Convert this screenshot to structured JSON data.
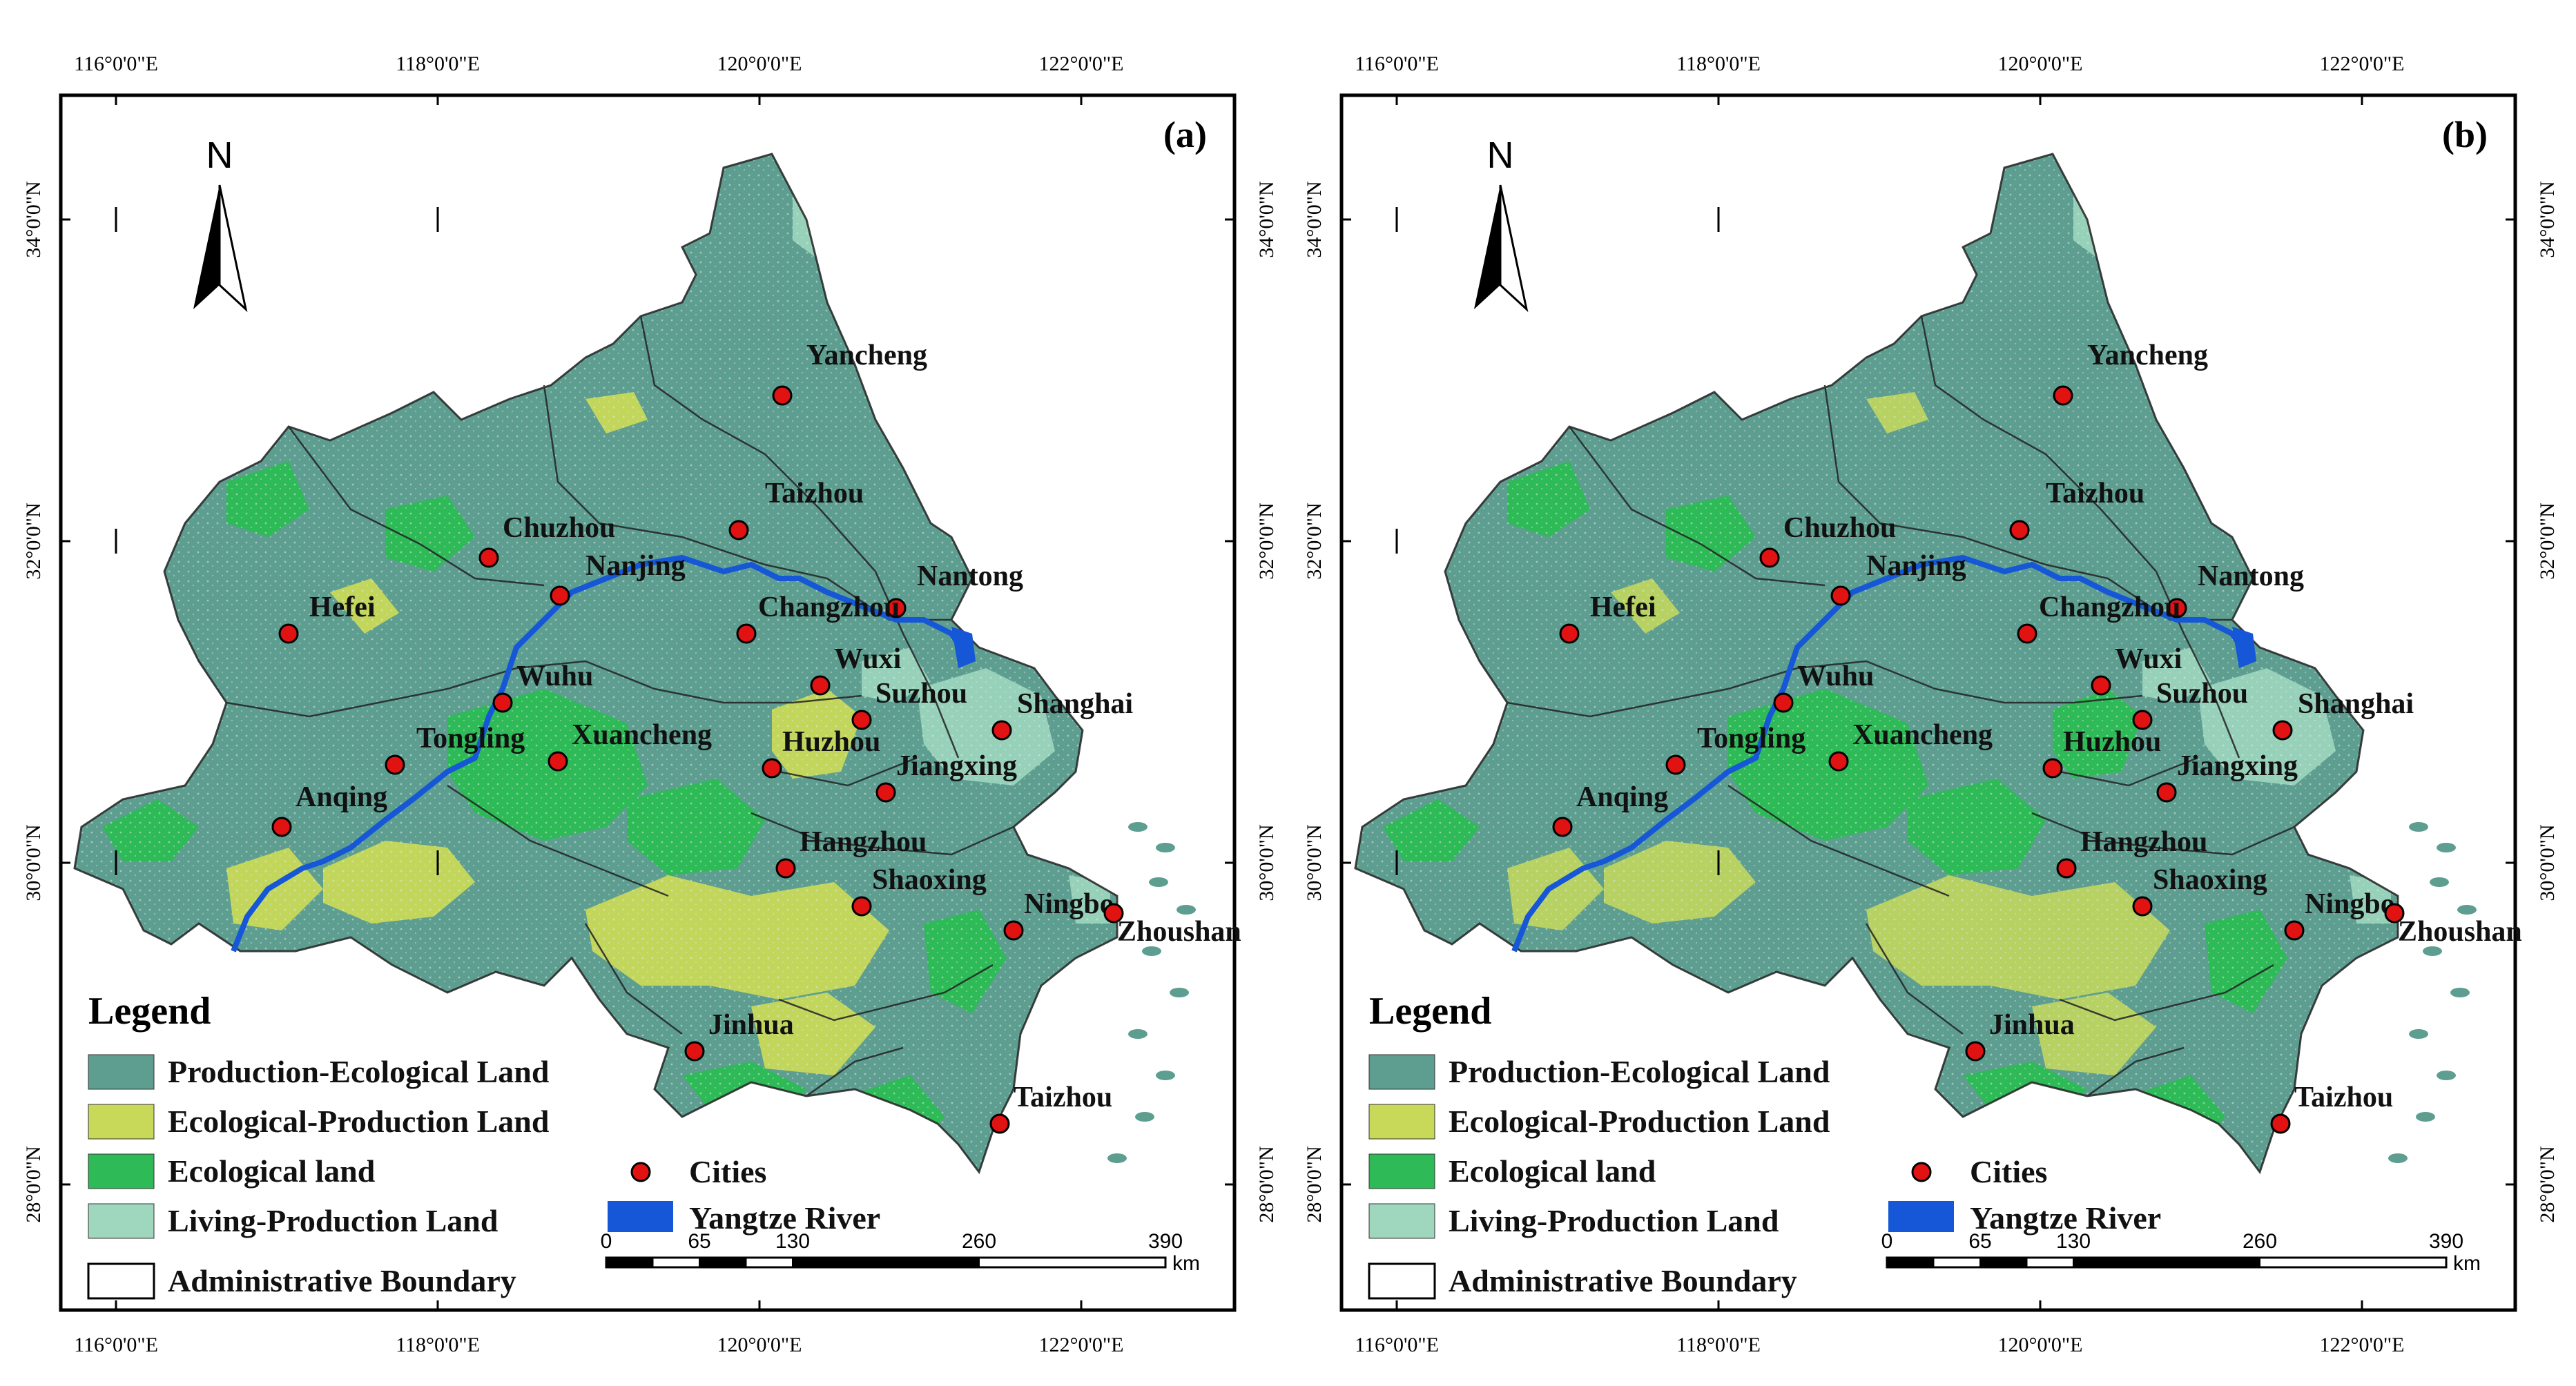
{
  "panels": [
    {
      "id": "a",
      "label": "(a)"
    },
    {
      "id": "b",
      "label": "(b)"
    }
  ],
  "lon_labels": [
    "116°0'0\"E",
    "118°0'0\"E",
    "120°0'0\"E",
    "122°0'0\"E"
  ],
  "lat_labels": [
    "34°0'0\"N",
    "32°0'0\"N",
    "30°0'0\"N",
    "28°0'0\"N"
  ],
  "north_label": "N",
  "colors": {
    "production_ecological": "#5E9E91",
    "ecological_production": "#C8D95A",
    "ecological": "#2DBA57",
    "living_production": "#9FD6BE",
    "city": "#E01212",
    "river": "#1557D6",
    "boundary": "#222222"
  },
  "cities": [
    {
      "name": "Yancheng"
    },
    {
      "name": "Taizhou"
    },
    {
      "name": "Chuzhou"
    },
    {
      "name": "Nanjing"
    },
    {
      "name": "Nantong"
    },
    {
      "name": "Changzhou"
    },
    {
      "name": "Hefei"
    },
    {
      "name": "Wuxi"
    },
    {
      "name": "Suzhou"
    },
    {
      "name": "Shanghai"
    },
    {
      "name": "Wuhu"
    },
    {
      "name": "Tongling"
    },
    {
      "name": "Xuancheng"
    },
    {
      "name": "Huzhou"
    },
    {
      "name": "Jiangxing"
    },
    {
      "name": "Anqing"
    },
    {
      "name": "Hangzhou"
    },
    {
      "name": "Shaoxing"
    },
    {
      "name": "Ningbo"
    },
    {
      "name": "Zhoushan"
    },
    {
      "name": "Jinhua"
    },
    {
      "name": "Taizhou"
    }
  ],
  "legend": {
    "title": "Legend",
    "items": {
      "production_ecological": "Production-Ecological Land",
      "ecological_production": "Ecological-Production Land",
      "ecological": "Ecological land",
      "living_production": "Living-Production Land",
      "boundary": "Administrative Boundary",
      "cities": "Cities",
      "river": "Yangtze River"
    }
  },
  "scale_bar": {
    "ticks": [
      "0",
      "65",
      "130",
      "260",
      "390"
    ],
    "unit": "km"
  }
}
